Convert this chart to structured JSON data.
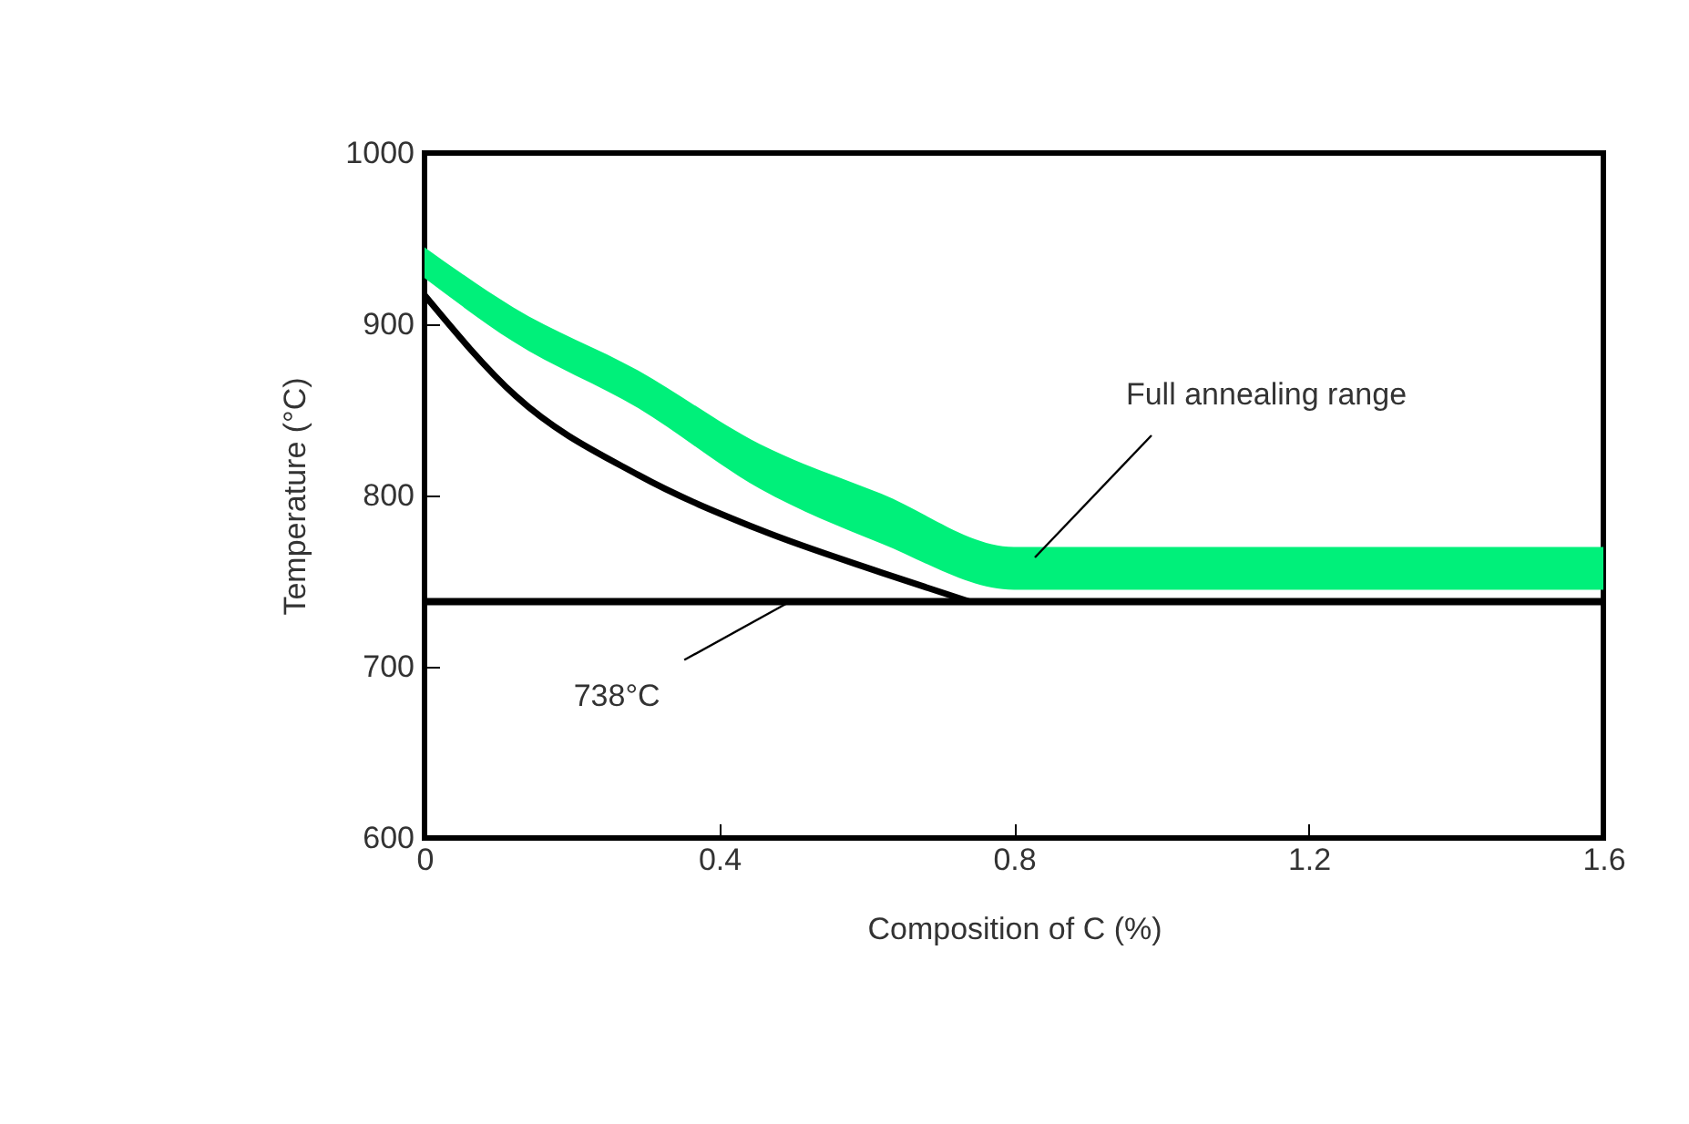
{
  "chart_data": {
    "type": "line",
    "xlabel": "Composition of C (%)",
    "ylabel": "Temperature (°C)",
    "xlim": [
      0,
      1.6
    ],
    "xticks": [
      0,
      0.4,
      0.8,
      1.2,
      1.6
    ],
    "ylim": [
      600,
      1000
    ],
    "yticks": [
      600,
      700,
      800,
      900,
      1000
    ],
    "grid": false,
    "series": [
      {
        "type": "area",
        "color": "#00f07a",
        "x": [
          0,
          0.12,
          0.29,
          0.455,
          0.62,
          0.8,
          1.6
        ],
        "values": [
          null,
          null,
          null,
          null,
          null,
          null,
          null
        ],
        "upper": [
          945,
          910,
          873,
          830,
          801,
          770,
          770
        ],
        "lower": [
          927,
          890,
          851,
          804,
          772,
          745,
          745
        ]
      },
      {
        "color": "#000000",
        "x": [
          0,
          0.124,
          0.29,
          0.455,
          0.62,
          0.74
        ],
        "values": [
          917,
          858,
          812,
          780,
          755,
          738
        ]
      }
    ],
    "ref_lines": [
      {
        "axis": "y",
        "value": 738,
        "label": "738°C",
        "color": "#000000"
      }
    ],
    "annotations": [
      "Full annealing range"
    ]
  }
}
